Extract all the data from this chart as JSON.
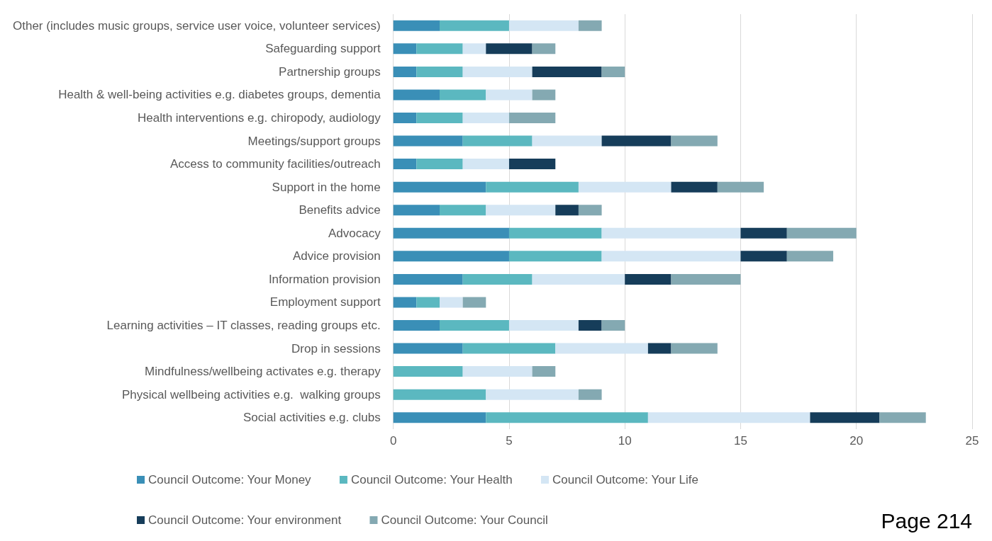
{
  "chart_data": {
    "type": "bar",
    "orientation": "horizontal",
    "stacked": true,
    "categories": [
      "Other (includes music groups, service user voice, volunteer services)",
      "Safeguarding support",
      "Partnership groups",
      "Health & well-being activities e.g. diabetes groups, dementia",
      "Health interventions e.g. chiropody, audiology",
      "Meetings/support groups",
      "Access to community facilities/outreach",
      "Support in the home",
      "Benefits advice",
      "Advocacy",
      "Advice provision",
      "Information provision",
      "Employment support",
      "Learning activities – IT classes, reading groups etc.",
      "Drop in sessions",
      "Mindfulness/wellbeing activates e.g. therapy",
      "Physical wellbeing activities e.g.  walking groups",
      "Social activities e.g. clubs"
    ],
    "series": [
      {
        "name": "Council Outcome: Your Money",
        "color": "#3a8fb7",
        "values": [
          2,
          1,
          1,
          2,
          1,
          3,
          1,
          4,
          2,
          5,
          5,
          3,
          1,
          2,
          3,
          0,
          0,
          4
        ]
      },
      {
        "name": "Council Outcome: Your Health",
        "color": "#5bb8c0",
        "values": [
          3,
          2,
          2,
          2,
          2,
          3,
          2,
          4,
          2,
          4,
          4,
          3,
          1,
          3,
          4,
          3,
          4,
          7
        ]
      },
      {
        "name": "Council Outcome: Your Life",
        "color": "#d4e6f4",
        "values": [
          3,
          1,
          3,
          2,
          2,
          3,
          2,
          4,
          3,
          6,
          6,
          4,
          1,
          3,
          4,
          3,
          4,
          7
        ]
      },
      {
        "name": "Council Outcome: Your environment",
        "color": "#163d5a",
        "values": [
          0,
          2,
          3,
          0,
          0,
          3,
          2,
          2,
          1,
          2,
          2,
          2,
          0,
          1,
          1,
          0,
          0,
          3
        ]
      },
      {
        "name": "Council Outcome: Your Council",
        "color": "#84a9b2",
        "values": [
          1,
          1,
          1,
          1,
          2,
          2,
          0,
          2,
          1,
          3,
          2,
          3,
          1,
          1,
          2,
          1,
          1,
          2
        ]
      }
    ],
    "xlim": [
      0,
      25
    ],
    "xticks": [
      0,
      5,
      10,
      15,
      20,
      25
    ],
    "grid": "x",
    "legend": "bottom",
    "annotations": [
      "Page 214"
    ]
  }
}
